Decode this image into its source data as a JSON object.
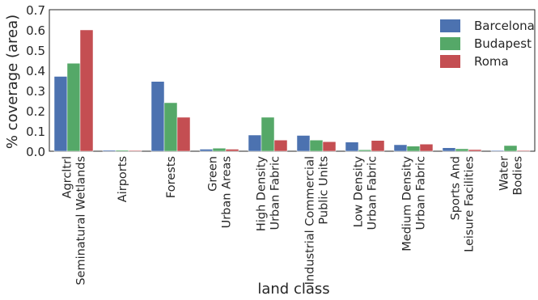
{
  "chart_data": {
    "type": "bar",
    "title": "",
    "xlabel": "land class",
    "ylabel": "% coverage (area)",
    "ylim": [
      0,
      0.7
    ],
    "yticks": [
      0.0,
      0.1,
      0.2,
      0.3,
      0.4,
      0.5,
      0.6,
      0.7
    ],
    "ytick_labels": [
      "0.0",
      "0.1",
      "0.2",
      "0.3",
      "0.4",
      "0.5",
      "0.6",
      "0.7"
    ],
    "grid": false,
    "legend_position": "top-right",
    "categories": [
      [
        "Agrcltrl",
        "Seminatural Wetlands"
      ],
      [
        "Airports"
      ],
      [
        "Forests"
      ],
      [
        "Green",
        "Urban Areas"
      ],
      [
        "High Density",
        "Urban Fabric"
      ],
      [
        "Industrial Commercial",
        "Public Units"
      ],
      [
        "Low Density",
        "Urban Fabric"
      ],
      [
        "Medium Density",
        "Urban Fabric"
      ],
      [
        "Sports And",
        "Leisure Facilities"
      ],
      [
        "Water",
        "Bodies"
      ]
    ],
    "series": [
      {
        "name": "Barcelona",
        "color": "#4c72b0",
        "values": [
          0.37,
          0.005,
          0.345,
          0.01,
          0.08,
          0.078,
          0.045,
          0.032,
          0.017,
          0.004
        ]
      },
      {
        "name": "Budapest",
        "color": "#55a868",
        "values": [
          0.435,
          0.005,
          0.24,
          0.015,
          0.168,
          0.055,
          0.007,
          0.025,
          0.012,
          0.028
        ]
      },
      {
        "name": "Roma",
        "color": "#c44e52",
        "values": [
          0.6,
          0.004,
          0.168,
          0.01,
          0.055,
          0.047,
          0.053,
          0.035,
          0.008,
          0.004
        ]
      }
    ]
  }
}
